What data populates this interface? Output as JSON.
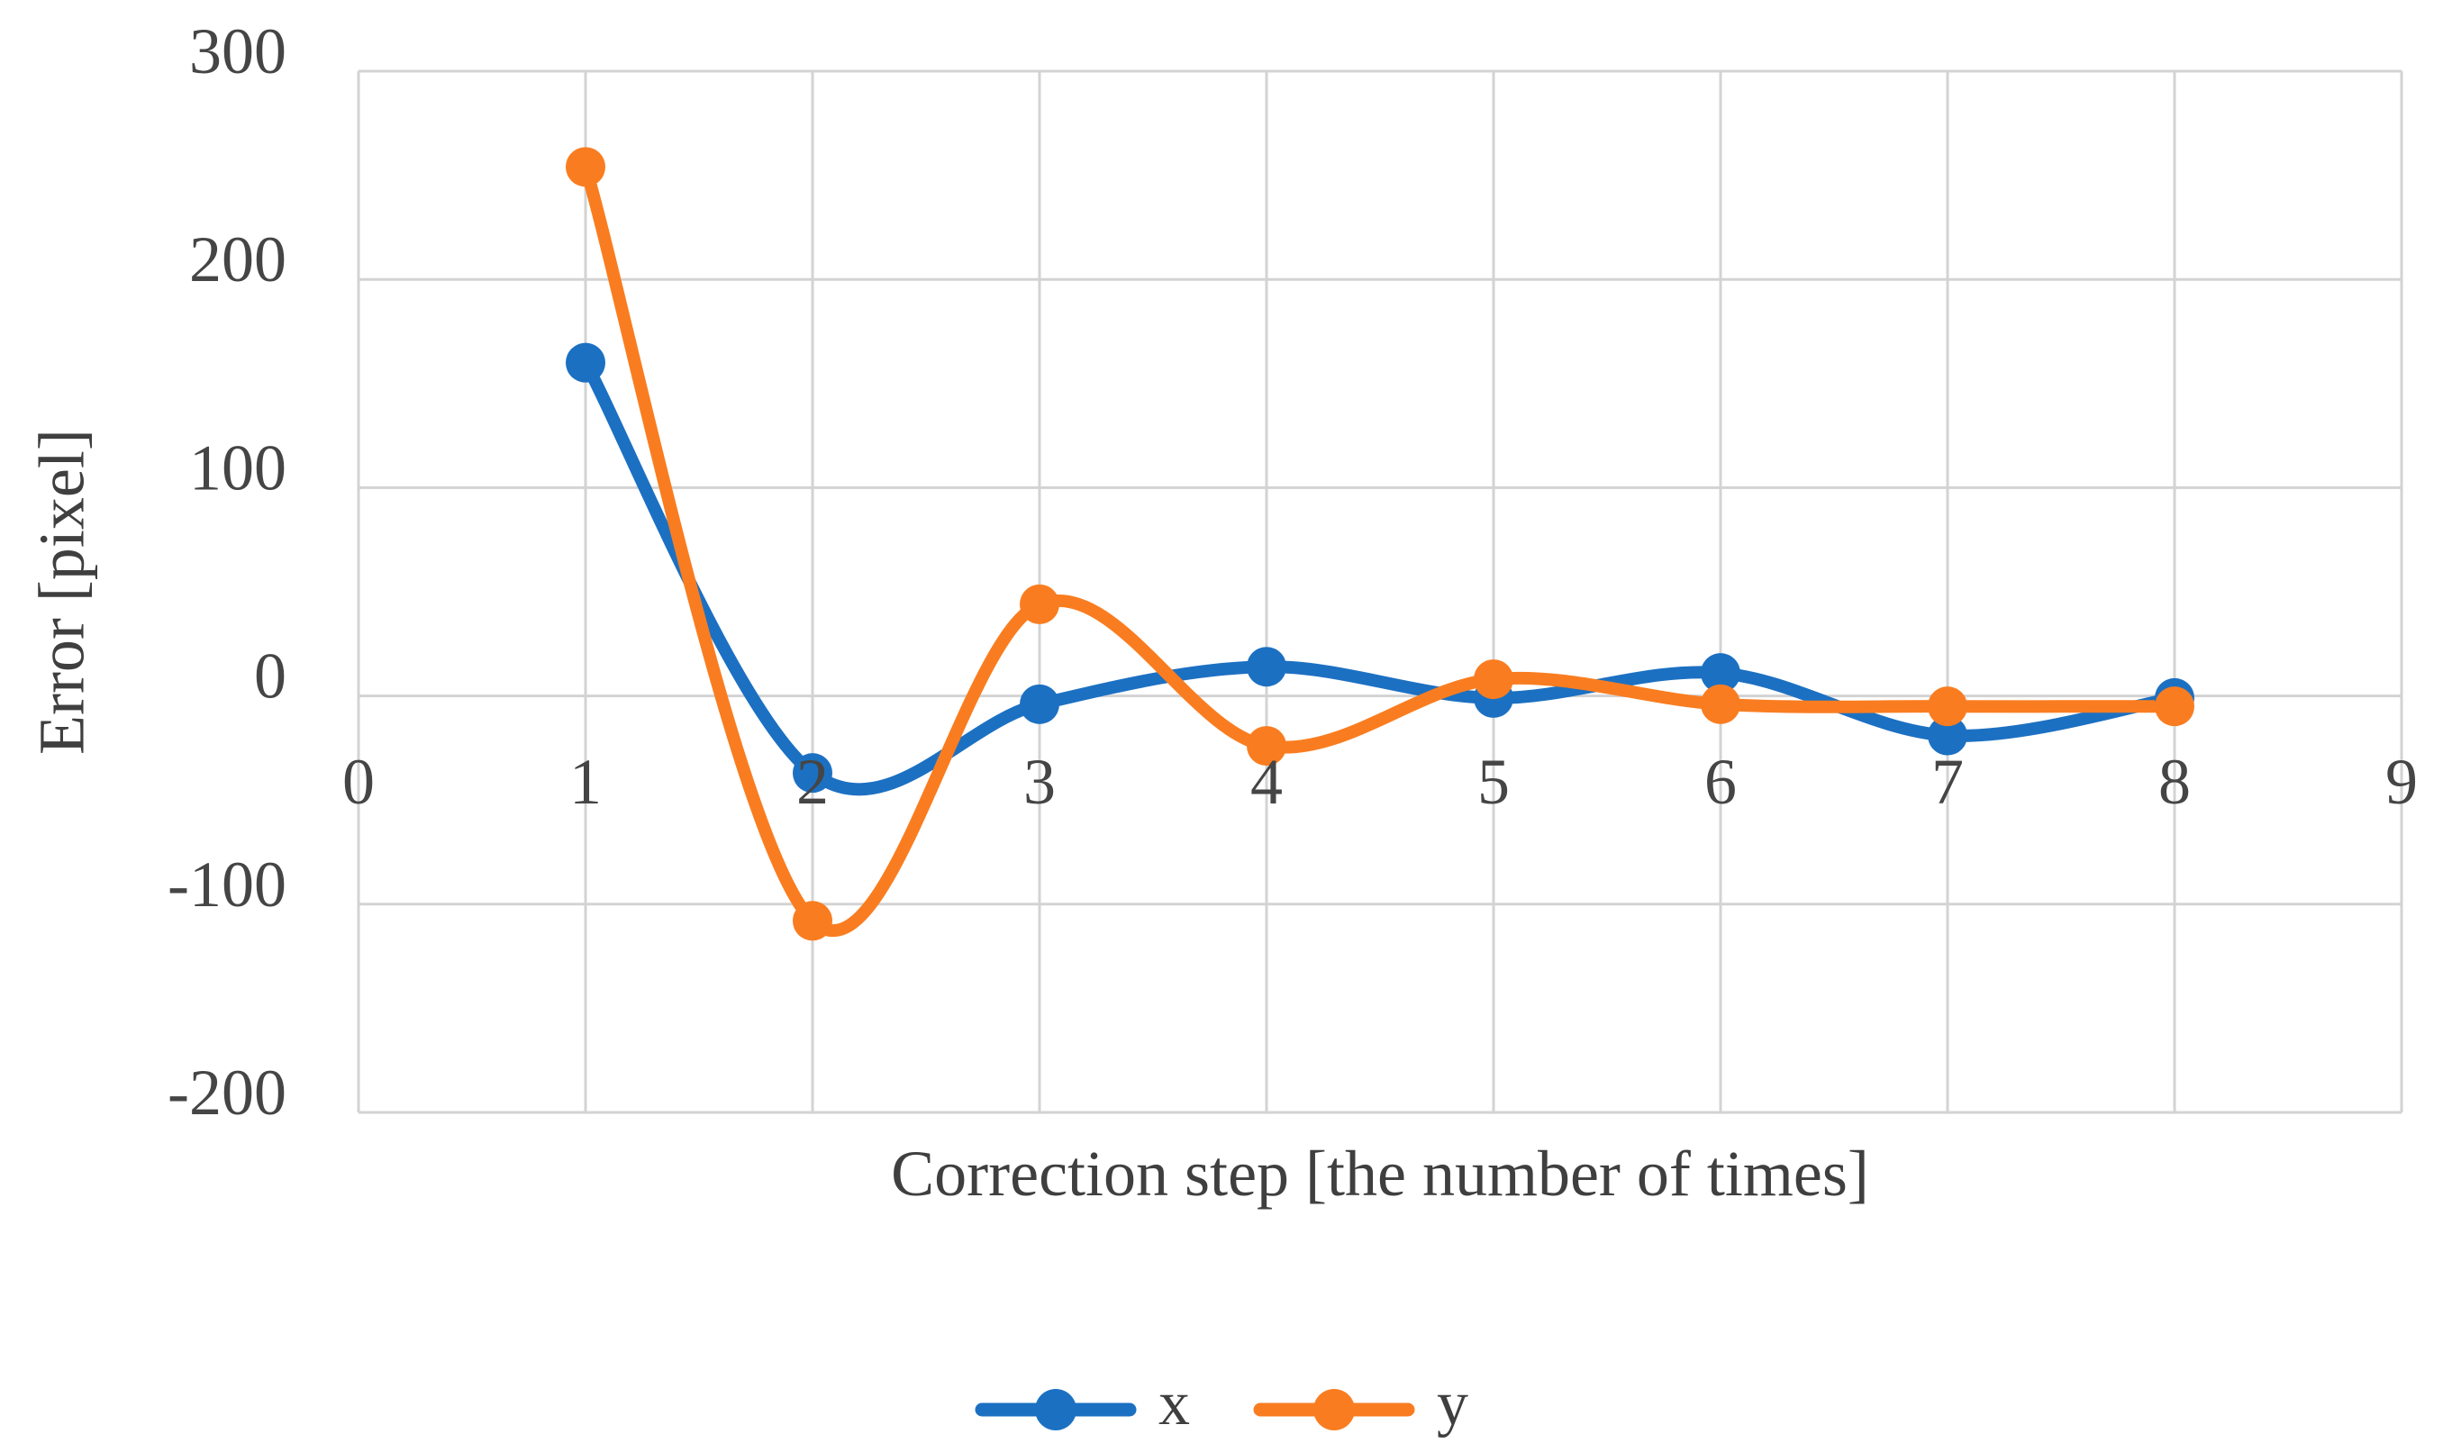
{
  "chart_data": {
    "type": "line",
    "title": "",
    "xlabel": "Correction step [the number of times]",
    "ylabel": "Error [pixel]",
    "x": [
      1,
      2,
      3,
      4,
      5,
      6,
      7,
      8
    ],
    "series": [
      {
        "name": "x",
        "color": "#1C70C2",
        "values": [
          160,
          -37,
          -4,
          14,
          -1,
          11,
          -19,
          -1
        ]
      },
      {
        "name": "y",
        "color": "#F97D20",
        "values": [
          254,
          -108,
          44,
          -24,
          8,
          -4,
          -5,
          -5
        ]
      }
    ],
    "xlim": [
      0,
      9
    ],
    "ylim": [
      -200,
      300
    ],
    "x_ticks": [
      0,
      1,
      2,
      3,
      4,
      5,
      6,
      7,
      8,
      9
    ],
    "y_ticks": [
      300,
      200,
      100,
      0,
      -100,
      -200
    ],
    "grid": true,
    "smooth": true,
    "legend_position": "bottom-center",
    "grid_color": "#D3D3D3",
    "tick_label_color": "#454545",
    "axis_title_color": "#3f3f3f",
    "background_color": "#ffffff"
  }
}
